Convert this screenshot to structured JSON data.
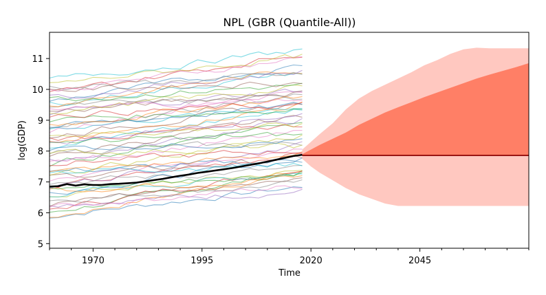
{
  "chart_data": {
    "type": "line",
    "title": "NPL (GBR (Quantile-All))",
    "xlabel": "Time",
    "ylabel": "log(GDP)",
    "xlim": [
      1960,
      2070
    ],
    "ylim": [
      4.85,
      11.85
    ],
    "x_ticks": [
      1970,
      1995,
      2020,
      2045
    ],
    "y_ticks": [
      5,
      6,
      7,
      8,
      9,
      10,
      11
    ],
    "grid": false,
    "legend": "none",
    "history_range": [
      1960,
      2018
    ],
    "target_series": {
      "x": [
        1960,
        1962,
        1964,
        1966,
        1968,
        1970,
        1972,
        1974,
        1976,
        1978,
        1980,
        1982,
        1984,
        1986,
        1988,
        1990,
        1992,
        1994,
        1996,
        1998,
        2000,
        2002,
        2004,
        2006,
        2008,
        2010,
        2012,
        2014,
        2016,
        2018
      ],
      "y": [
        6.85,
        6.86,
        6.93,
        6.88,
        6.92,
        6.9,
        6.9,
        6.93,
        6.94,
        6.96,
        6.98,
        7.02,
        7.06,
        7.1,
        7.15,
        7.2,
        7.24,
        7.29,
        7.33,
        7.37,
        7.41,
        7.45,
        7.5,
        7.55,
        7.6,
        7.66,
        7.72,
        7.78,
        7.84,
        7.88
      ]
    },
    "forecast": {
      "x": [
        2018,
        2020,
        2022,
        2025,
        2028,
        2031,
        2034,
        2037,
        2040,
        2043,
        2046,
        2049,
        2052,
        2055,
        2058,
        2061,
        2064,
        2067,
        2070
      ],
      "center": [
        7.86,
        7.86,
        7.86,
        7.86,
        7.86,
        7.86,
        7.86,
        7.86,
        7.86,
        7.86,
        7.86,
        7.86,
        7.86,
        7.86,
        7.86,
        7.86,
        7.86,
        7.86,
        7.86
      ],
      "inner_upper": [
        7.9,
        8.05,
        8.2,
        8.4,
        8.6,
        8.85,
        9.05,
        9.25,
        9.42,
        9.58,
        9.75,
        9.9,
        10.05,
        10.2,
        10.35,
        10.48,
        10.6,
        10.72,
        10.85
      ],
      "outer_upper": [
        8.05,
        8.3,
        8.55,
        8.9,
        9.35,
        9.7,
        9.95,
        10.15,
        10.35,
        10.55,
        10.78,
        10.95,
        11.15,
        11.3,
        11.35,
        11.33,
        11.33,
        11.33,
        11.33
      ],
      "outer_lower": [
        7.75,
        7.5,
        7.3,
        7.05,
        6.8,
        6.6,
        6.45,
        6.3,
        6.22,
        6.22,
        6.22,
        6.22,
        6.22,
        6.22,
        6.22,
        6.22,
        6.22,
        6.22,
        6.22
      ]
    },
    "comparison_series_count": 60,
    "colors": {
      "target": "#000000",
      "center_line": "#8b0000",
      "inner_band": "#ff7f66",
      "outer_band": "#ffc8c0",
      "palette": [
        "#1f77b4",
        "#ff7f0e",
        "#2ca02c",
        "#d62728",
        "#9467bd",
        "#8c564b",
        "#e377c2",
        "#7f7f7f",
        "#bcbd22",
        "#17becf"
      ]
    }
  }
}
